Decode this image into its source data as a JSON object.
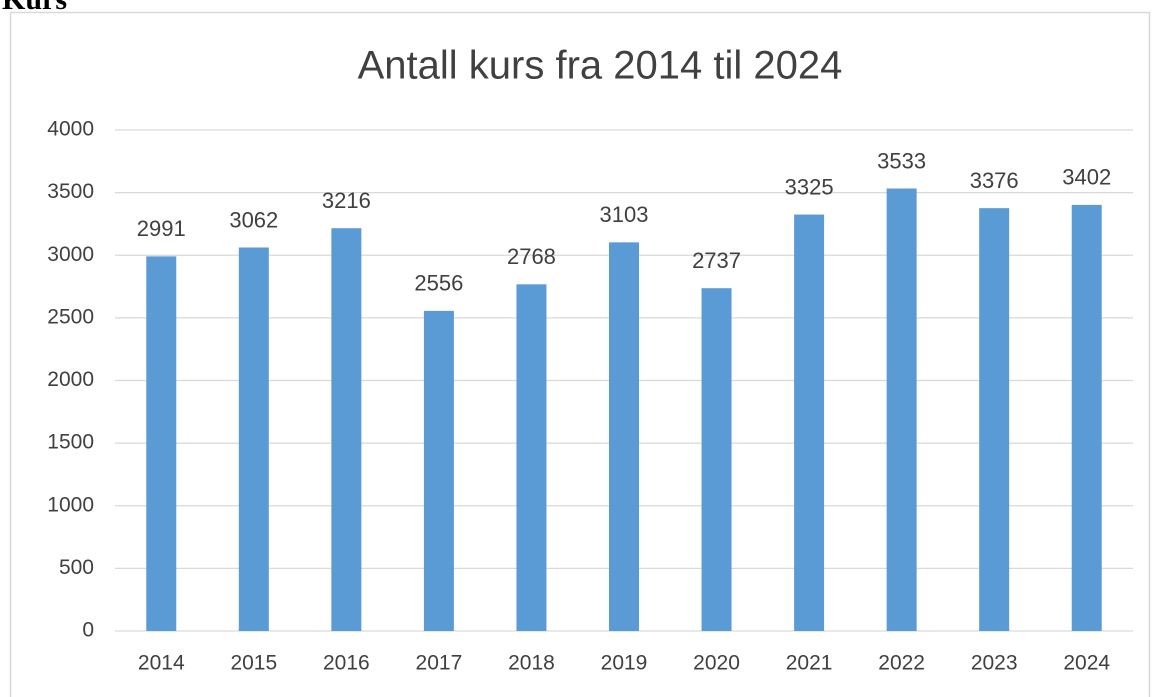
{
  "heading": "Kurs",
  "chart_data": {
    "type": "bar",
    "title": "Antall kurs fra 2014 til 2024",
    "categories": [
      "2014",
      "2015",
      "2016",
      "2017",
      "2018",
      "2019",
      "2020",
      "2021",
      "2022",
      "2023",
      "2024"
    ],
    "values": [
      2991,
      3062,
      3216,
      2556,
      2768,
      3103,
      2737,
      3325,
      3533,
      3376,
      3402
    ],
    "color": "#5b9bd5",
    "ylim": [
      0,
      4000
    ],
    "yticks": [
      0,
      500,
      1000,
      1500,
      2000,
      2500,
      3000,
      3500,
      4000
    ],
    "grid": true
  }
}
